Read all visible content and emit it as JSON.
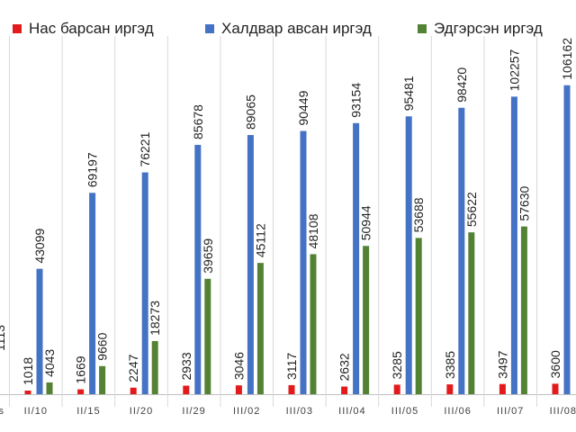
{
  "chart_data": {
    "type": "bar",
    "categories": [
      "II/10",
      "II/15",
      "II/20",
      "II/29",
      "III/02",
      "III/03",
      "III/04",
      "III/05",
      "III/06",
      "III/07",
      "III/08"
    ],
    "series": [
      {
        "name": "Нас барсан иргэд",
        "color": "#e31a1c",
        "values": [
          1018,
          1669,
          2247,
          2933,
          3046,
          3117,
          2632,
          3285,
          3385,
          3497,
          3600
        ]
      },
      {
        "name": "Халдвар авсан иргэд",
        "color": "#4472c4",
        "values": [
          43099,
          69197,
          76221,
          85678,
          89065,
          90449,
          93154,
          95481,
          98420,
          102257,
          106162
        ]
      },
      {
        "name": "Эдгэрсэн иргэд",
        "color": "#548235",
        "values": [
          4043,
          9660,
          18273,
          39659,
          45112,
          48108,
          50944,
          53688,
          55622,
          57630,
          null
        ]
      }
    ],
    "ylim": [
      0,
      120000
    ],
    "grid": false,
    "legend_position": "top",
    "clipped_left_label": "s",
    "clipped_left_value": "1113"
  }
}
